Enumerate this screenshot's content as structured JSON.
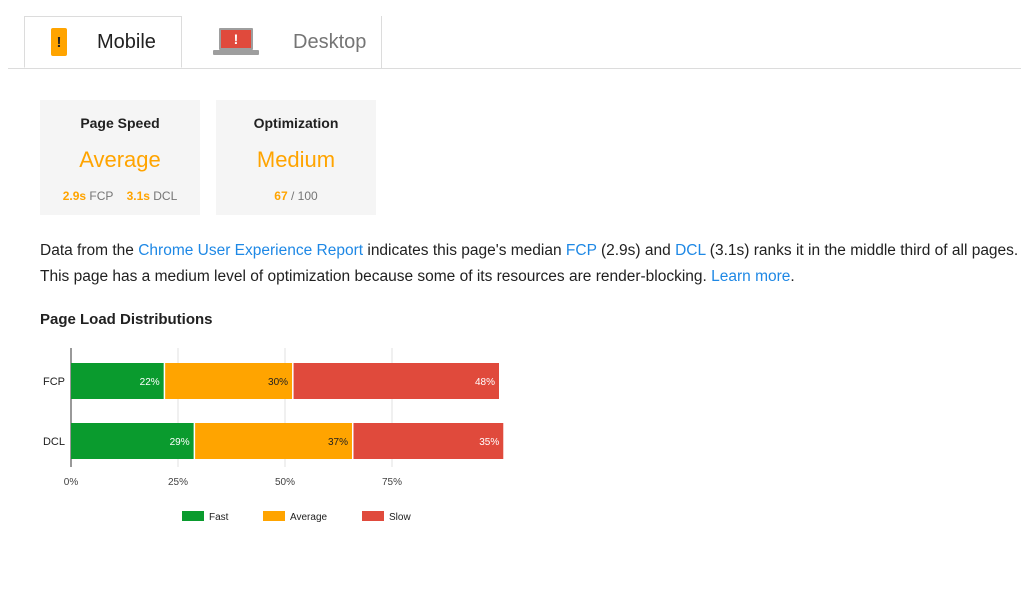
{
  "tabs": {
    "mobile": {
      "label": "Mobile",
      "icon": "mobile-phone-icon"
    },
    "desktop": {
      "label": "Desktop",
      "icon": "laptop-icon"
    },
    "icon_glyph": "!"
  },
  "cards": {
    "page_speed": {
      "title": "Page Speed",
      "value": "Average",
      "fcp_value": "2.9s",
      "fcp_label": "FCP",
      "dcl_value": "3.1s",
      "dcl_label": "DCL"
    },
    "optimization": {
      "title": "Optimization",
      "value": "Medium",
      "score": "67",
      "score_suffix": " / 100"
    }
  },
  "description": {
    "p1": "Data from the ",
    "link_report": "Chrome User Experience Report",
    "p2": " indicates this page's median ",
    "link_fcp": "FCP",
    "p3": " (2.9s) and ",
    "link_dcl": "DCL",
    "p4": " (3.1s) ranks it in the middle third of all pages. This page has a medium level of optimization because some of its resources are render-blocking. ",
    "link_learn": "Learn more",
    "p5": "."
  },
  "distributions_title": "Page Load Distributions",
  "colors": {
    "fast": "#0a9b2e",
    "average": "#ffa400",
    "slow": "#e04a3c",
    "accent": "#ffa400",
    "link": "#1e88e5"
  },
  "chart_data": {
    "type": "bar",
    "orientation": "horizontal",
    "stacked": true,
    "categories": [
      "FCP",
      "DCL"
    ],
    "series": [
      {
        "name": "Fast",
        "values": [
          22,
          29
        ],
        "labels": [
          "22%",
          "29%"
        ],
        "color": "#0a9b2e"
      },
      {
        "name": "Average",
        "values": [
          30,
          37
        ],
        "labels": [
          "30%",
          "37%"
        ],
        "color": "#ffa400"
      },
      {
        "name": "Slow",
        "values": [
          48,
          35
        ],
        "labels": [
          "48%",
          "35%"
        ],
        "color": "#e04a3c"
      }
    ],
    "xticks": [
      "0%",
      "25%",
      "50%",
      "75%"
    ],
    "xlim": [
      0,
      100
    ],
    "grid": true,
    "legend": "bottom"
  }
}
